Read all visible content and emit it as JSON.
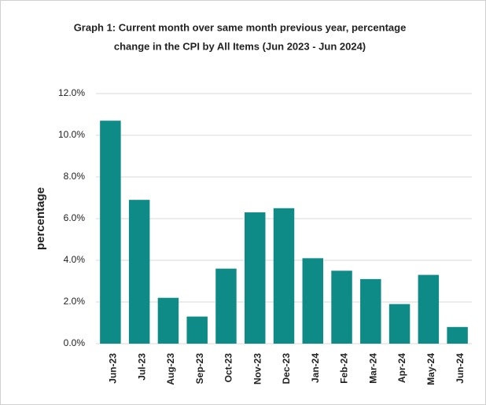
{
  "chart_data": {
    "type": "bar",
    "title": [
      "Graph 1: Current month over same month previous year, percentage",
      "change in the CPI by All Items (Jun 2023 - Jun 2024)"
    ],
    "y_label": "percentage",
    "categories": [
      "Jun-23",
      "Jul-23",
      "Aug-23",
      "Sep-23",
      "Oct-23",
      "Nov-23",
      "Dec-23",
      "Jan-24",
      "Feb-24",
      "Mar-24",
      "Apr-24",
      "May-24",
      "Jun-24"
    ],
    "values": [
      10.7,
      6.9,
      2.2,
      1.3,
      3.6,
      6.3,
      6.5,
      4.1,
      3.5,
      3.1,
      1.9,
      3.3,
      0.8
    ],
    "color": "#0f8b87",
    "ylim": [
      0,
      12
    ],
    "yticks": [
      {
        "value": 0,
        "label": "0.0%"
      },
      {
        "value": 2,
        "label": "2.0%"
      },
      {
        "value": 4,
        "label": "4.0%"
      },
      {
        "value": 6,
        "label": "6.0%"
      },
      {
        "value": 8,
        "label": "8.0%"
      },
      {
        "value": 10,
        "label": "10.0%"
      },
      {
        "value": 12,
        "label": "12.0%"
      }
    ],
    "grid": true
  }
}
